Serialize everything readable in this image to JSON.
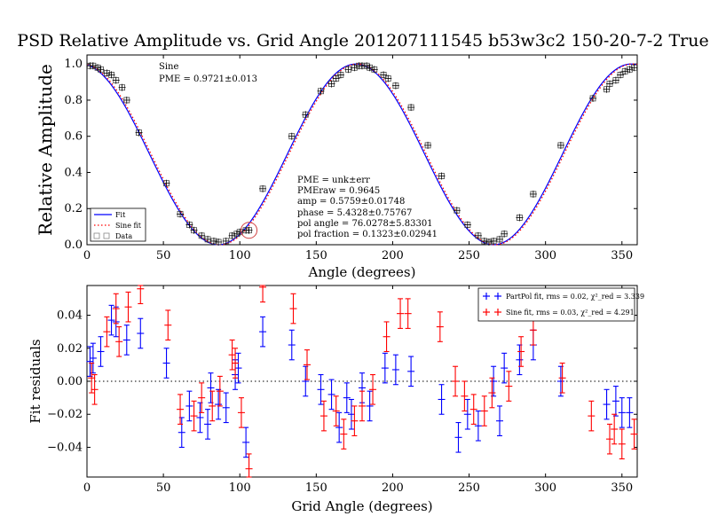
{
  "chart_data": [
    {
      "type": "scatter",
      "title": "PSD Relative Amplitude vs. Grid Angle 201207111545 b53w3c2 150-20-7-2 True",
      "xlabel": "Angle (degrees)",
      "ylabel": "Relative Amplitude",
      "xlim": [
        0,
        360
      ],
      "ylim": [
        0,
        1.05
      ],
      "xticks": [
        0,
        50,
        100,
        150,
        200,
        250,
        300,
        350
      ],
      "yticks": [
        0.0,
        0.2,
        0.4,
        0.6,
        0.8,
        1.0
      ],
      "grid": false,
      "legend_position": "bottom-left",
      "annotation_top_left": [
        "Sine",
        "PME = 0.9721±0.013"
      ],
      "annotation_fit": [
        "PME = unk±err",
        "PMEraw = 0.9645",
        "amp = 0.5759±0.01748",
        "phase = 5.4328±0.75767",
        "pol angle = 76.0278±5.83301",
        "pol fraction = 0.1323±0.02941"
      ],
      "series": [
        {
          "name": "Fit",
          "style": "solid",
          "color": "#0000ff",
          "model": {
            "offset": 0.5,
            "amp": 0.5,
            "phase_deg": 176,
            "period_deg": 180,
            "harmonic": {
              "amp": -0.045,
              "phase_deg": 176
            }
          }
        },
        {
          "name": "Sine fit",
          "style": "dotted",
          "color": "#ff0000",
          "model": {
            "offset": 0.5,
            "amp": 0.5,
            "phase_deg": 177,
            "period_deg": 180
          }
        },
        {
          "name": "Data",
          "marker": "square-plus",
          "color": "#000000",
          "x": [
            2,
            4,
            7,
            9,
            13,
            16,
            19,
            23,
            26,
            34,
            52,
            61,
            67,
            70,
            75,
            79,
            83,
            86,
            91,
            95,
            98,
            100,
            104,
            106,
            115,
            134,
            143,
            153,
            160,
            163,
            166,
            171,
            175,
            178,
            180,
            183,
            185,
            188,
            194,
            197,
            202,
            212,
            223,
            232,
            242,
            249,
            256,
            260,
            263,
            266,
            270,
            273,
            283,
            292,
            310,
            331,
            340,
            342,
            346,
            349,
            352,
            355,
            358
          ],
          "y": [
            0.99,
            0.99,
            0.98,
            0.97,
            0.95,
            0.94,
            0.91,
            0.87,
            0.8,
            0.62,
            0.34,
            0.17,
            0.11,
            0.08,
            0.05,
            0.03,
            0.02,
            0.015,
            0.02,
            0.05,
            0.06,
            0.07,
            0.08,
            0.08,
            0.31,
            0.6,
            0.72,
            0.85,
            0.89,
            0.92,
            0.94,
            0.97,
            0.98,
            0.99,
            0.99,
            0.99,
            0.98,
            0.97,
            0.94,
            0.92,
            0.88,
            0.76,
            0.55,
            0.38,
            0.19,
            0.11,
            0.05,
            0.02,
            0.015,
            0.02,
            0.03,
            0.06,
            0.15,
            0.28,
            0.55,
            0.81,
            0.86,
            0.89,
            0.91,
            0.94,
            0.96,
            0.97,
            0.98
          ],
          "circled_point": {
            "x": 106,
            "y": 0.08
          }
        }
      ]
    },
    {
      "type": "scatter",
      "xlabel": "Grid Angle (degrees)",
      "ylabel": "Fit residuals",
      "xlim": [
        0,
        360
      ],
      "ylim": [
        -0.058,
        0.058
      ],
      "xticks": [
        0,
        50,
        100,
        150,
        200,
        250,
        300,
        350
      ],
      "yticks": [
        -0.04,
        -0.02,
        0.0,
        0.02,
        0.04
      ],
      "zero_line": "dotted",
      "legend_position": "top-right",
      "series": [
        {
          "name": "PartPol fit, rms = 0.02, χ²_red = 3.339",
          "color": "#0000ff",
          "yerr": 0.009,
          "x": [
            2,
            4,
            9,
            16,
            19,
            26,
            35,
            52,
            62,
            67,
            74,
            79,
            81,
            86,
            91,
            97,
            99,
            104,
            115,
            134,
            143,
            153,
            160,
            165,
            170,
            173,
            180,
            185,
            195,
            202,
            212,
            232,
            243,
            249,
            256,
            266,
            270,
            273,
            283,
            292,
            310,
            340,
            346,
            350,
            355
          ],
          "y": [
            0.012,
            0.014,
            0.018,
            0.037,
            0.036,
            0.025,
            0.029,
            0.011,
            -0.031,
            -0.015,
            -0.022,
            -0.026,
            -0.004,
            -0.014,
            -0.016,
            0.004,
            0.008,
            -0.037,
            0.03,
            0.022,
            0.0,
            -0.005,
            -0.008,
            -0.028,
            -0.01,
            -0.02,
            -0.004,
            -0.015,
            0.008,
            0.007,
            0.006,
            -0.011,
            -0.034,
            -0.02,
            -0.027,
            0.0,
            -0.024,
            0.008,
            0.013,
            0.022,
            0.0,
            -0.014,
            -0.012,
            -0.019,
            -0.019
          ]
        },
        {
          "name": "Sine fit, rms = 0.03, χ²_red = 4.291",
          "color": "#ff0000",
          "yerr": 0.009,
          "x": [
            3,
            5,
            13,
            19,
            21,
            27,
            35,
            53,
            61,
            70,
            75,
            82,
            87,
            95,
            97,
            101,
            106,
            115,
            135,
            144,
            155,
            163,
            168,
            175,
            180,
            187,
            196,
            205,
            210,
            231,
            241,
            247,
            253,
            260,
            265,
            276,
            284,
            292,
            311,
            330,
            342,
            345,
            350,
            358
          ],
          "y": [
            0.002,
            -0.005,
            0.03,
            0.044,
            0.024,
            0.045,
            0.056,
            0.034,
            -0.017,
            -0.021,
            -0.01,
            -0.015,
            -0.006,
            0.016,
            0.011,
            -0.019,
            -0.053,
            0.057,
            0.044,
            0.01,
            -0.021,
            -0.018,
            -0.032,
            -0.024,
            -0.015,
            -0.005,
            0.027,
            0.041,
            0.041,
            0.033,
            0.0,
            -0.009,
            -0.017,
            -0.018,
            -0.007,
            -0.003,
            0.018,
            0.031,
            0.002,
            -0.021,
            -0.035,
            -0.029,
            -0.038,
            -0.032
          ]
        }
      ]
    }
  ]
}
